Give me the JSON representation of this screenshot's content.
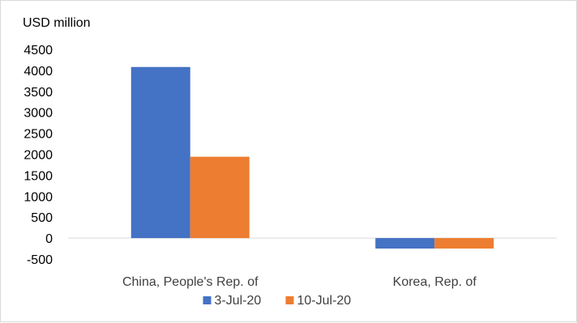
{
  "chart_data": {
    "type": "bar",
    "ylabel": "USD million",
    "ylim": [
      -500,
      4500
    ],
    "yticks": [
      4500,
      4000,
      3500,
      3000,
      2500,
      2000,
      1500,
      1000,
      500,
      0,
      -500
    ],
    "categories": [
      "China, People's Rep. of",
      "Korea, Rep. of"
    ],
    "series": [
      {
        "name": "3-Jul-20",
        "color": "#4472C4",
        "values": [
          4080,
          -250
        ]
      },
      {
        "name": "10-Jul-20",
        "color": "#ED7D31",
        "values": [
          1940,
          -250
        ]
      }
    ],
    "legend_position": "bottom",
    "grid": false
  }
}
